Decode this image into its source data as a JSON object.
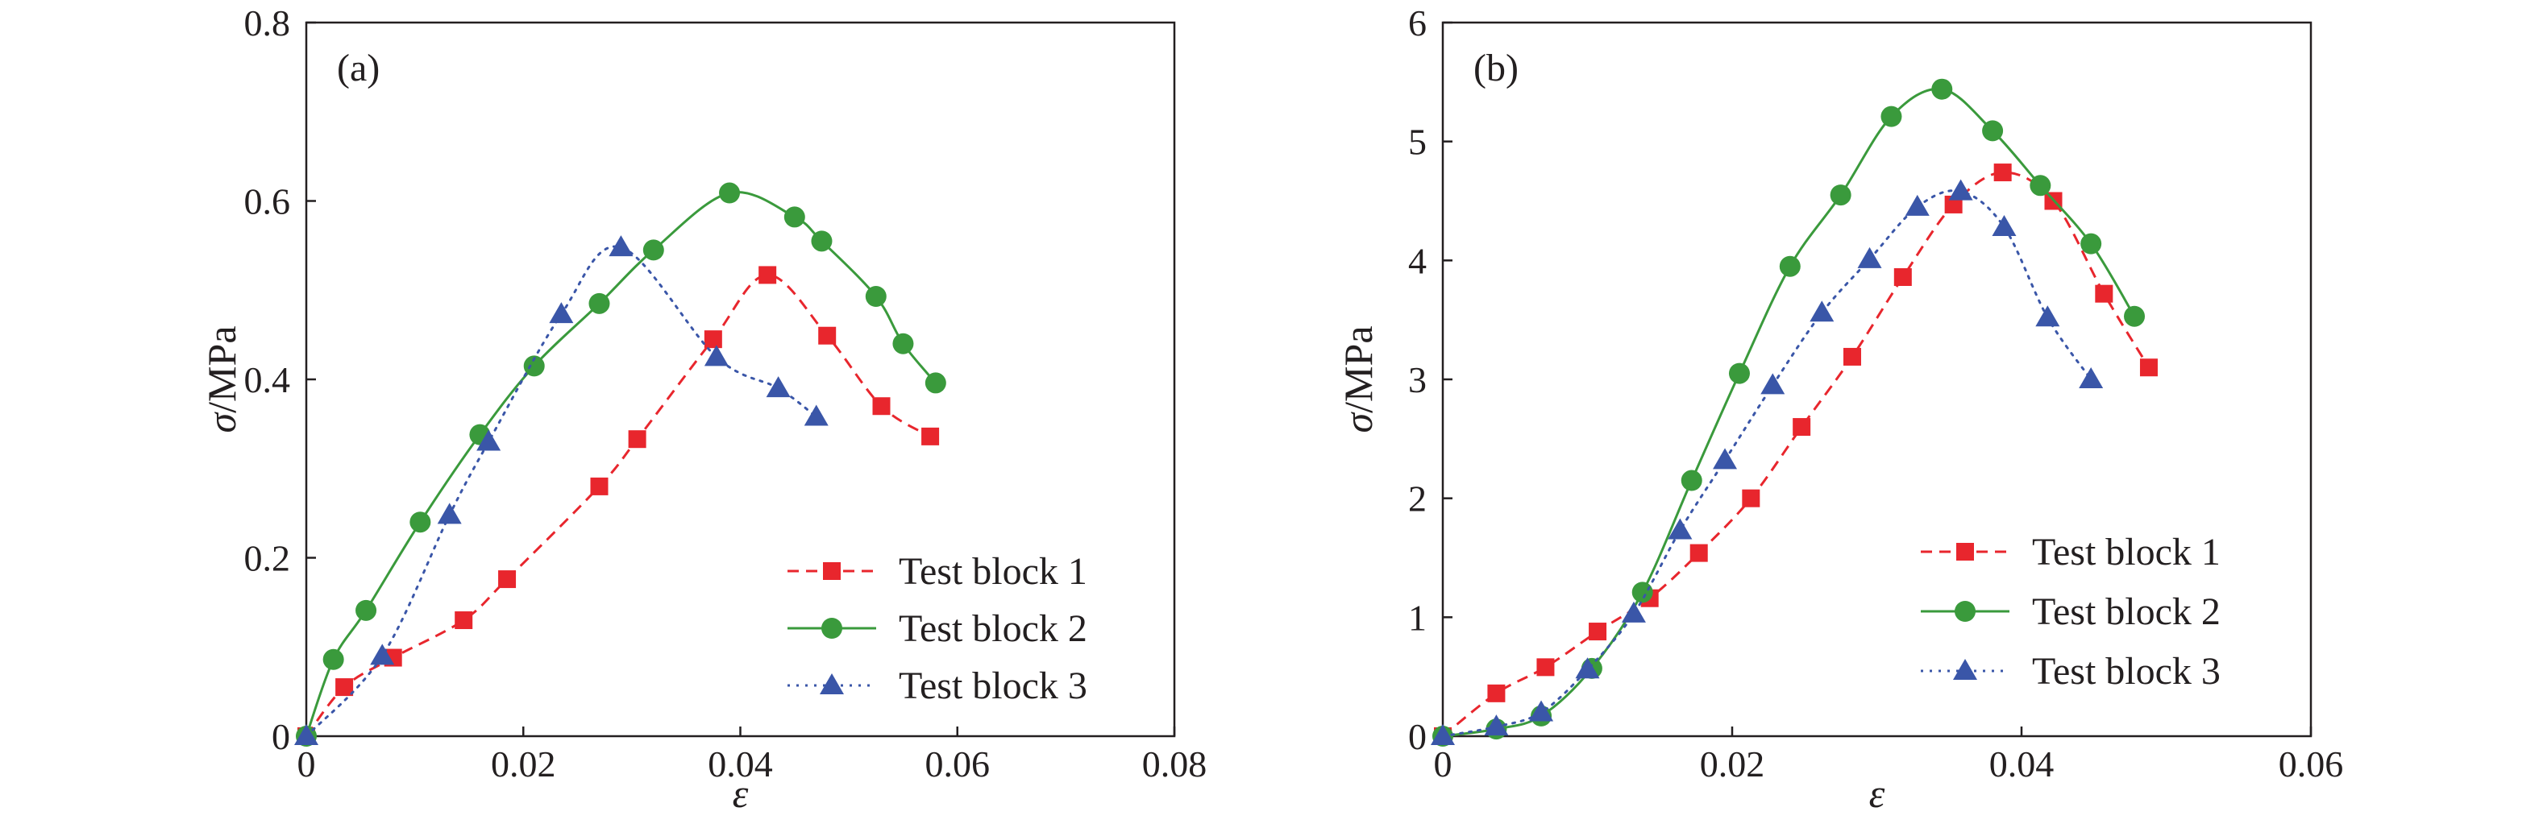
{
  "chart_data": [
    {
      "type": "line",
      "panel_label": "(a)",
      "xlabel": "ε",
      "ylabel": "σ/MPa",
      "xlim": [
        0,
        0.08
      ],
      "ylim": [
        0,
        0.8
      ],
      "x_ticks": [
        0,
        0.02,
        0.04,
        0.06,
        0.08
      ],
      "x_tick_labels": [
        "0",
        "0.02",
        "0.04",
        "0.06",
        "0.08"
      ],
      "y_ticks": [
        0,
        0.2,
        0.4,
        0.6,
        0.8
      ],
      "y_tick_labels": [
        "0",
        "0.2",
        "0.4",
        "0.6",
        "0.8"
      ],
      "grid": false,
      "legend_position": "bottom-right",
      "series": [
        {
          "name": "Test block 1",
          "color": "#e8262d",
          "marker": "square",
          "line_style": "dashed",
          "x": [
            0,
            0.0035,
            0.008,
            0.0145,
            0.0185,
            0.027,
            0.0305,
            0.0375,
            0.0425,
            0.048,
            0.053,
            0.0575
          ],
          "y": [
            0,
            0.055,
            0.088,
            0.13,
            0.176,
            0.28,
            0.333,
            0.445,
            0.517,
            0.449,
            0.37,
            0.336
          ]
        },
        {
          "name": "Test block 2",
          "color": "#3a9a3c",
          "marker": "circle",
          "line_style": "solid",
          "x": [
            0,
            0.0025,
            0.0055,
            0.0105,
            0.016,
            0.021,
            0.027,
            0.032,
            0.039,
            0.045,
            0.0475,
            0.0525,
            0.055,
            0.058
          ],
          "y": [
            0,
            0.086,
            0.141,
            0.24,
            0.338,
            0.415,
            0.485,
            0.545,
            0.609,
            0.582,
            0.555,
            0.493,
            0.44,
            0.396
          ]
        },
        {
          "name": "Test block 3",
          "color": "#3a56a8",
          "marker": "triangle",
          "line_style": "dotted",
          "x": [
            0,
            0.007,
            0.0132,
            0.0168,
            0.0235,
            0.029,
            0.0378,
            0.0435,
            0.047
          ],
          "y": [
            0,
            0.09,
            0.248,
            0.33,
            0.473,
            0.548,
            0.425,
            0.39,
            0.358
          ]
        }
      ]
    },
    {
      "type": "line",
      "panel_label": "(b)",
      "xlabel": "ε",
      "ylabel": "σ/MPa",
      "xlim": [
        0,
        0.06
      ],
      "ylim": [
        0,
        6
      ],
      "x_ticks": [
        0,
        0.02,
        0.04,
        0.06
      ],
      "x_tick_labels": [
        "0",
        "0.02",
        "0.04",
        "0.06"
      ],
      "y_ticks": [
        0,
        1,
        2,
        3,
        4,
        5,
        6
      ],
      "y_tick_labels": [
        "0",
        "1",
        "2",
        "3",
        "4",
        "5",
        "6"
      ],
      "grid": false,
      "legend_position": "bottom-right",
      "series": [
        {
          "name": "Test block 1",
          "color": "#e8262d",
          "marker": "square",
          "line_style": "dashed",
          "x": [
            0,
            0.0037,
            0.0071,
            0.0107,
            0.0143,
            0.0177,
            0.0213,
            0.0248,
            0.0283,
            0.0318,
            0.0353,
            0.0387,
            0.0422,
            0.0457,
            0.0488
          ],
          "y": [
            0,
            0.36,
            0.58,
            0.88,
            1.16,
            1.54,
            2.0,
            2.6,
            3.19,
            3.86,
            4.47,
            4.74,
            4.5,
            3.72,
            3.1
          ]
        },
        {
          "name": "Test block 2",
          "color": "#3a9a3c",
          "marker": "circle",
          "line_style": "solid",
          "x": [
            0,
            0.0037,
            0.0068,
            0.0103,
            0.0138,
            0.0172,
            0.0205,
            0.024,
            0.0275,
            0.031,
            0.0345,
            0.038,
            0.0413,
            0.0448,
            0.0478
          ],
          "y": [
            0,
            0.06,
            0.17,
            0.57,
            1.21,
            2.15,
            3.05,
            3.95,
            4.55,
            5.21,
            5.44,
            5.09,
            4.63,
            4.14,
            3.53
          ]
        },
        {
          "name": "Test block 3",
          "color": "#3a56a8",
          "marker": "triangle",
          "line_style": "dotted",
          "x": [
            0,
            0.0037,
            0.0068,
            0.01,
            0.0132,
            0.0164,
            0.0195,
            0.0228,
            0.0262,
            0.0295,
            0.0328,
            0.0358,
            0.0388,
            0.0418,
            0.0448
          ],
          "y": [
            0,
            0.08,
            0.2,
            0.56,
            1.03,
            1.73,
            2.32,
            2.95,
            3.56,
            4.01,
            4.45,
            4.58,
            4.28,
            3.52,
            3.0
          ]
        }
      ]
    }
  ]
}
